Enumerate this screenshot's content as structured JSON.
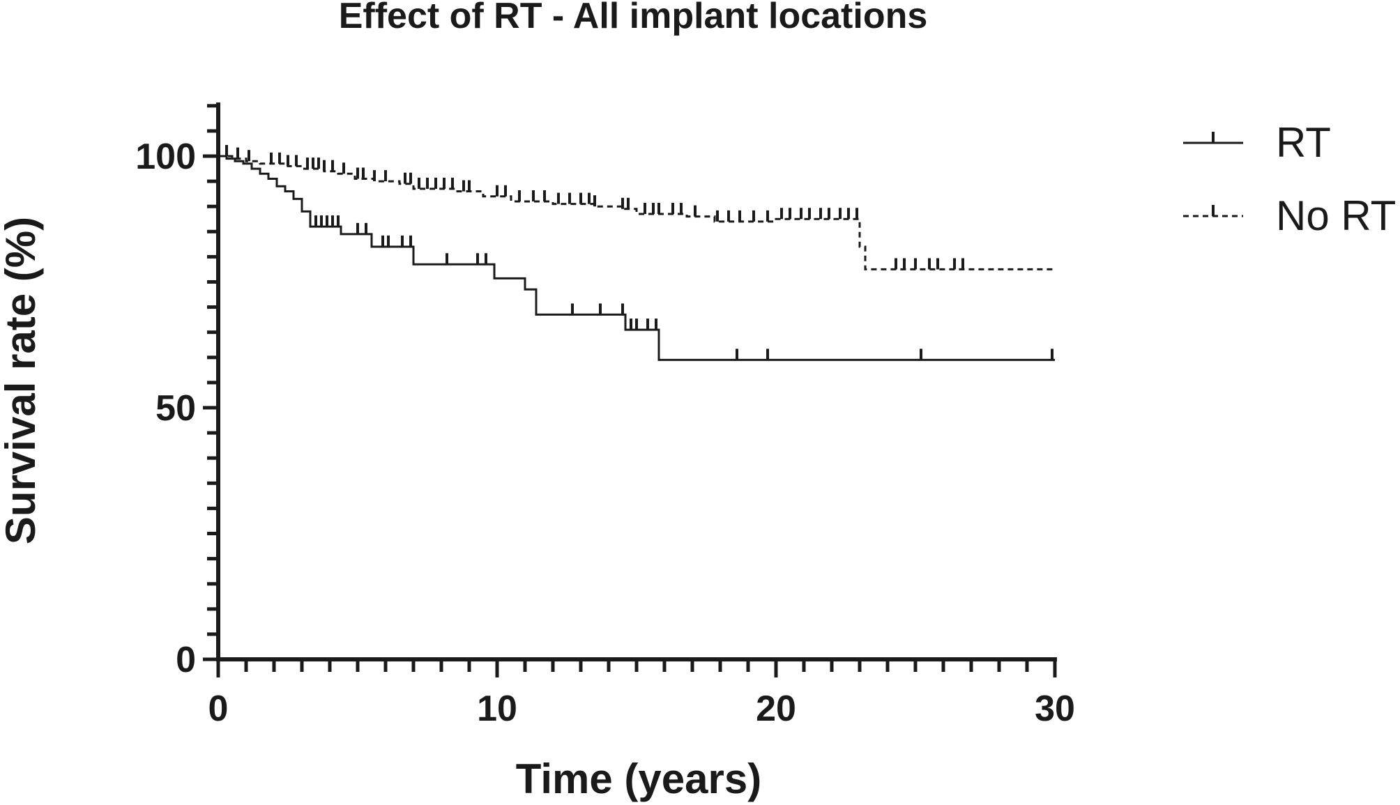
{
  "colors": {
    "ink": "#1a1a1a",
    "background": "#ffffff"
  },
  "chart_data": {
    "type": "line",
    "title": "Effect of RT - All implant locations",
    "xlabel": "Time  (years)",
    "ylabel": "Survival rate (%)",
    "xlim": [
      0,
      30
    ],
    "ylim": [
      0,
      110
    ],
    "x_ticks": [
      0,
      10,
      20,
      30
    ],
    "x_tick_labels": [
      "0",
      "10",
      "20",
      "30"
    ],
    "y_ticks": [
      0,
      50,
      100
    ],
    "y_tick_labels": [
      "0",
      "50",
      "100"
    ],
    "x_minor_step": 1,
    "y_minor_step": 5,
    "grid": false,
    "legend_position": "top-right",
    "series": [
      {
        "name": "RT",
        "style": "solid",
        "steps": [
          [
            0,
            100
          ],
          [
            0.3,
            99.5
          ],
          [
            0.6,
            99
          ],
          [
            0.9,
            98.5
          ],
          [
            1.2,
            97.5
          ],
          [
            1.5,
            96.5
          ],
          [
            1.8,
            95.5
          ],
          [
            2.1,
            94
          ],
          [
            2.4,
            93
          ],
          [
            2.7,
            91.5
          ],
          [
            3.0,
            89
          ],
          [
            3.3,
            86
          ],
          [
            4.4,
            84.5
          ],
          [
            5.5,
            82
          ],
          [
            7.0,
            78.5
          ],
          [
            9.9,
            75.7
          ],
          [
            11.0,
            73.5
          ],
          [
            11.4,
            68.5
          ],
          [
            14.6,
            65.5
          ],
          [
            15.8,
            59.5
          ],
          [
            30,
            59.5
          ]
        ],
        "censor_times": [
          3.5,
          3.7,
          3.9,
          4.1,
          4.3,
          5.0,
          5.3,
          5.9,
          6.1,
          6.6,
          6.9,
          8.2,
          9.3,
          9.6,
          12.7,
          13.7,
          14.5,
          14.8,
          15.0,
          15.4,
          15.7,
          18.6,
          19.7,
          25.2,
          29.9
        ]
      },
      {
        "name": "No RT",
        "style": "dashed",
        "steps": [
          [
            0,
            100
          ],
          [
            0.5,
            99.5
          ],
          [
            1.0,
            99
          ],
          [
            1.5,
            98.5
          ],
          [
            2.5,
            98
          ],
          [
            3.0,
            97.5
          ],
          [
            3.8,
            97
          ],
          [
            4.3,
            96.5
          ],
          [
            4.9,
            95.5
          ],
          [
            5.6,
            95
          ],
          [
            6.5,
            94.5
          ],
          [
            7.0,
            93.5
          ],
          [
            8.5,
            93
          ],
          [
            9.5,
            92
          ],
          [
            10.5,
            91
          ],
          [
            12.0,
            90.5
          ],
          [
            13.5,
            90
          ],
          [
            14.5,
            89.5
          ],
          [
            15.0,
            88.5
          ],
          [
            16.8,
            88
          ],
          [
            17.8,
            87
          ],
          [
            20.0,
            87.5
          ],
          [
            23.0,
            82
          ],
          [
            23.2,
            77.5
          ],
          [
            30,
            77.5
          ]
        ],
        "censor_times": [
          0.3,
          0.7,
          1.1,
          1.9,
          2.2,
          2.5,
          2.8,
          3.2,
          3.4,
          3.6,
          3.8,
          4.1,
          4.5,
          5.0,
          5.2,
          5.6,
          6.0,
          6.7,
          6.9,
          7.2,
          7.5,
          7.8,
          8.1,
          8.4,
          8.8,
          9.0,
          10.0,
          10.3,
          10.8,
          11.3,
          11.7,
          12.2,
          12.6,
          13.0,
          13.3,
          13.5,
          14.5,
          14.7,
          15.3,
          15.6,
          15.8,
          16.3,
          16.6,
          17.1,
          17.9,
          18.3,
          18.7,
          19.2,
          19.7,
          20.2,
          20.5,
          20.9,
          21.2,
          21.6,
          21.9,
          22.3,
          22.6,
          22.9,
          24.3,
          24.6,
          25.0,
          25.5,
          25.8,
          26.4,
          26.7
        ]
      }
    ]
  }
}
